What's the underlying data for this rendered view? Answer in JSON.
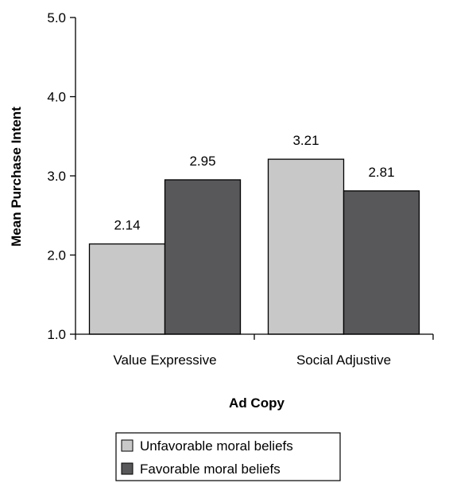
{
  "chart_data": {
    "type": "bar",
    "categories": [
      "Value Expressive",
      "Social Adjustive"
    ],
    "series": [
      {
        "name": "Unfavorable moral beliefs",
        "values": [
          2.14,
          3.21
        ],
        "color": "#c8c8c8"
      },
      {
        "name": "Favorable moral beliefs",
        "values": [
          2.95,
          2.81
        ],
        "color": "#58585a"
      }
    ],
    "value_labels": [
      [
        "2.14",
        "3.21"
      ],
      [
        "2.95",
        "2.81"
      ]
    ],
    "title": "",
    "xlabel": "Ad Copy",
    "ylabel": "Mean Purchase Intent",
    "ylim": [
      1.0,
      5.0
    ],
    "yticks": [
      1.0,
      2.0,
      3.0,
      4.0,
      5.0
    ],
    "ytick_labels": [
      "1.0",
      "2.0",
      "3.0",
      "4.0",
      "5.0"
    ],
    "grid": false,
    "legend_position": "bottom-center"
  }
}
